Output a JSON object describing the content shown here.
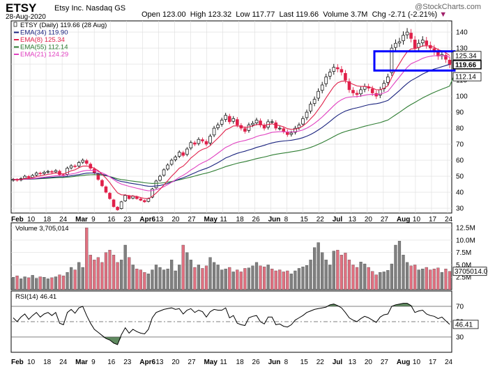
{
  "header": {
    "ticker": "ETSY",
    "company": "Etsy Inc. Nasdaq GS",
    "date": "28-Aug-2020",
    "open_label": "Open",
    "open": "123.00",
    "high_label": "High",
    "high": "123.32",
    "low_label": "Low",
    "low": "117.77",
    "last_label": "Last",
    "last": "119.66",
    "volume_label": "Volume",
    "volume": "3.7M",
    "chg_label": "Chg",
    "chg": "-2.71 (-2.21%)",
    "brand": "@StockCharts.com"
  },
  "colors": {
    "up": "#ffffff",
    "down": "#e0204a",
    "ema34": "#1a237e",
    "ema8": "#e0204a",
    "ema55": "#2e7d32",
    "ema21": "#e040c0",
    "vol_up": "#808080",
    "vol_down": "#e07080",
    "rsi_fill": "#5f8a5f",
    "highlight": "#0000ff",
    "grid": "#dddddd"
  },
  "chart_data": [
    {
      "type": "candlestick",
      "title": "ETSY (Daily) 119.66 (28 Aug)",
      "ylim": [
        27,
        147
      ],
      "yticks": [
        30,
        40,
        50,
        60,
        70,
        80,
        90,
        100,
        110,
        120,
        130,
        140
      ],
      "xtick_labels": [
        "Feb",
        "10",
        "18",
        "24",
        "Mar",
        "9",
        "16",
        "23",
        "Apr6",
        "13",
        "20",
        "27",
        "May",
        "11",
        "18",
        "26",
        "Jun",
        "8",
        "15",
        "22",
        "Jul",
        "13",
        "20",
        "27",
        "Aug",
        "10",
        "17",
        "24"
      ],
      "legend": [
        {
          "label": "EMA(34) 119.90",
          "color": "#1a237e"
        },
        {
          "label": "EMA(8) 125.34",
          "color": "#e0204a"
        },
        {
          "label": "EMA(55) 112.14",
          "color": "#2e7d32"
        },
        {
          "label": "EMA(21) 124.29",
          "color": "#e040c0"
        }
      ],
      "right_labels": [
        {
          "text": "125.34",
          "value": 125.34
        },
        {
          "text": "119.66",
          "value": 119.66
        },
        {
          "text": "112.14",
          "value": 112.14
        }
      ],
      "close": [
        48,
        47.5,
        48.5,
        50,
        49,
        50.5,
        52,
        51.5,
        52.5,
        53,
        52.5,
        53.5,
        51,
        50.5,
        55,
        56.5,
        56,
        58.5,
        60,
        58,
        55,
        52,
        48,
        44,
        40,
        36,
        31,
        29,
        34,
        38,
        36,
        37.5,
        36,
        35,
        34,
        36,
        42,
        47,
        50,
        54,
        57,
        60,
        62,
        65,
        63,
        67,
        71,
        70,
        73,
        72,
        70,
        75,
        80,
        82,
        85,
        88,
        84,
        86,
        82,
        80,
        78,
        82,
        83,
        85,
        82,
        80,
        84,
        84,
        80,
        80,
        78,
        76,
        77,
        80,
        82,
        86,
        90,
        95,
        98,
        103,
        107,
        112,
        115,
        118,
        117,
        115,
        110,
        104,
        102,
        101,
        104,
        106,
        105,
        102,
        100,
        104,
        108,
        112,
        130,
        133,
        134,
        138,
        140,
        136,
        130,
        133,
        135,
        132,
        130,
        128,
        125,
        126,
        123,
        119.66
      ],
      "ema8": [
        48,
        47.9,
        48,
        48.5,
        48.6,
        49,
        49.8,
        50.2,
        50.7,
        51.2,
        51.5,
        52,
        51.7,
        51.4,
        52.3,
        53.4,
        54,
        55.3,
        56.3,
        56.4,
        56,
        55,
        53.5,
        51.2,
        48.8,
        46,
        42.7,
        39.6,
        38.4,
        38.3,
        37.8,
        37.7,
        37.3,
        36.7,
        36.1,
        36,
        37.4,
        39.5,
        41.8,
        44.5,
        47.2,
        50,
        52.4,
        55,
        56.3,
        58.6,
        61.4,
        63.3,
        65.4,
        66.8,
        67.5,
        69.1,
        71.5,
        73.8,
        76.3,
        78.9,
        80,
        81.4,
        81.5,
        81.1,
        80.4,
        80.8,
        81.4,
        82.3,
        82.3,
        81.8,
        82.3,
        82.7,
        82.1,
        81.6,
        80.8,
        79.7,
        79.2,
        79.4,
        80,
        81.4,
        83.3,
        85.9,
        88.4,
        91.7,
        95.1,
        98.9,
        102.5,
        106,
        108.3,
        109.3,
        109.5,
        108.4,
        107.4,
        106.4,
        106.1,
        106.1,
        105.9,
        105.1,
        104,
        104,
        104.9,
        106.5,
        111.7,
        116.4,
        120.3,
        124.2,
        127.7,
        129.5,
        129.6,
        130.4,
        131.4,
        131.5,
        131.2,
        130.5,
        129,
        128.3,
        127.1,
        125.34
      ],
      "ema21": [
        48,
        48,
        48,
        48.2,
        48.3,
        48.5,
        48.8,
        49.1,
        49.4,
        49.7,
        50,
        50.3,
        50.4,
        50.4,
        50.9,
        51.4,
        51.8,
        52.5,
        53.2,
        53.6,
        53.7,
        53.6,
        53,
        52.1,
        51,
        49.6,
        47.9,
        46.2,
        45.1,
        44.4,
        43.7,
        43.1,
        42.5,
        41.9,
        41.3,
        40.9,
        41,
        41.6,
        42.4,
        43.5,
        44.8,
        46.2,
        47.7,
        49.3,
        50.6,
        52.1,
        53.9,
        55.4,
        57.1,
        58.4,
        59.5,
        60.9,
        62.6,
        64.4,
        66.2,
        68,
        69.1,
        70.4,
        71.2,
        71.8,
        72.3,
        73,
        73.8,
        74.8,
        75.5,
        75.9,
        76.7,
        77.4,
        77.6,
        77.8,
        77.8,
        77.6,
        77.6,
        77.8,
        78.2,
        78.9,
        80,
        81.4,
        83,
        84.9,
        87,
        89.3,
        91.7,
        94.1,
        96.2,
        97.8,
        98.9,
        99.4,
        99.6,
        99.7,
        100.1,
        100.6,
        101,
        101.1,
        101,
        101.3,
        102,
        103,
        106,
        109,
        112,
        115,
        118,
        120.2,
        121.3,
        122.4,
        123.6,
        124.4,
        124.9,
        125.2,
        125.2,
        125.3,
        125,
        124.29
      ],
      "ema34": [
        48,
        48,
        48,
        48.1,
        48.2,
        48.3,
        48.5,
        48.7,
        48.9,
        49.1,
        49.3,
        49.5,
        49.6,
        49.6,
        49.9,
        50.3,
        50.6,
        51,
        51.5,
        51.9,
        52,
        52,
        51.7,
        51.2,
        50.5,
        49.7,
        48.6,
        47.4,
        46.7,
        46.3,
        45.8,
        45.4,
        45,
        44.6,
        44.1,
        43.8,
        43.7,
        43.9,
        44.2,
        44.8,
        45.5,
        46.3,
        47.2,
        48.2,
        49,
        50,
        51.1,
        52.1,
        53.2,
        54.1,
        54.9,
        55.9,
        57.2,
        58.5,
        59.9,
        61.4,
        62.3,
        63.4,
        64.3,
        65,
        65.6,
        66.4,
        67.1,
        68,
        68.6,
        69.3,
        70.1,
        70.8,
        71.3,
        71.7,
        72,
        72.2,
        72.5,
        72.9,
        73.4,
        74.1,
        75,
        76.1,
        77.4,
        78.9,
        80.5,
        82.3,
        84.2,
        86.2,
        88,
        89.5,
        90.7,
        91.5,
        92.2,
        92.7,
        93.3,
        94,
        94.6,
        95,
        95.3,
        95.8,
        96.5,
        97.3,
        99.3,
        101.4,
        103.5,
        105.8,
        107.9,
        109.7,
        111,
        112.4,
        113.8,
        114.9,
        116,
        116.9,
        117.6,
        118.4,
        119.1,
        119.9
      ],
      "ema55": [
        48,
        48,
        48,
        48.1,
        48.1,
        48.2,
        48.3,
        48.5,
        48.6,
        48.8,
        48.9,
        49.1,
        49.2,
        49.2,
        49.4,
        49.6,
        49.9,
        50.2,
        50.5,
        50.8,
        50.9,
        51,
        50.9,
        50.7,
        50.3,
        49.8,
        49.1,
        48.4,
        47.9,
        47.6,
        47.2,
        46.9,
        46.6,
        46.3,
        45.9,
        45.7,
        45.5,
        45.6,
        45.7,
        45.9,
        46.3,
        46.7,
        47.2,
        47.8,
        48.3,
        48.9,
        49.5,
        50.1,
        50.8,
        51.4,
        51.9,
        52.6,
        53.4,
        54.2,
        55.1,
        56,
        56.7,
        57.4,
        58.1,
        58.6,
        59.1,
        59.7,
        60.3,
        61,
        61.5,
        62,
        62.6,
        63.2,
        63.7,
        64.1,
        64.5,
        64.8,
        65.2,
        65.6,
        66,
        66.6,
        67.2,
        68,
        68.9,
        69.9,
        71,
        72.2,
        73.5,
        74.8,
        76,
        77.1,
        77.9,
        78.6,
        79.2,
        79.8,
        80.5,
        81.2,
        81.8,
        82.4,
        82.9,
        83.5,
        84.3,
        85.1,
        86.7,
        88.3,
        89.9,
        91.6,
        93.3,
        94.8,
        96.1,
        97.5,
        98.9,
        100.1,
        101.3,
        102.4,
        103.4,
        104.4,
        105.3,
        106.3,
        112.14
      ]
    },
    {
      "type": "bar",
      "title": "Volume 3,705,014",
      "ylim": [
        0,
        13.5
      ],
      "yticks": [
        "2.5M",
        "5.0M",
        "7.5M",
        "10.0M",
        "12.5M"
      ],
      "right_label": "3705014.0",
      "values": [
        2.5,
        2.8,
        2.2,
        2.6,
        2.4,
        2.9,
        2.3,
        2.6,
        2.5,
        2.2,
        2.4,
        2.6,
        3,
        2.8,
        3.5,
        4.5,
        4,
        5.5,
        4.5,
        12.5,
        7,
        6,
        6.5,
        5.5,
        7.5,
        8,
        7,
        5.5,
        6,
        9,
        6.5,
        5,
        4.2,
        4,
        3.5,
        3.2,
        4,
        5,
        4.5,
        4,
        4.2,
        6,
        3.8,
        5,
        9,
        7.5,
        6,
        4.5,
        5,
        4.3,
        4.8,
        6.5,
        5.5,
        5,
        4,
        4.2,
        4.5,
        3.6,
        4,
        3.6,
        4.3,
        4.4,
        4.8,
        5.5,
        4.8,
        4.6,
        5,
        4.2,
        3.8,
        4,
        3.6,
        3.8,
        3.2,
        3.8,
        4.3,
        4.6,
        4.9,
        6,
        8.5,
        9.5,
        7.5,
        6,
        5,
        7.8,
        8,
        7,
        7.4,
        6,
        5,
        4.5,
        5.6,
        5.2,
        4.5,
        3.7,
        3,
        3.5,
        3.6,
        3.9,
        5.2,
        9,
        9.8,
        7,
        5.5,
        4.8,
        5,
        4,
        4.2,
        4.5,
        4,
        4.2,
        4.4,
        3.5,
        4.2,
        3.7
      ],
      "up": [
        true,
        false,
        true,
        true,
        false,
        true,
        true,
        false,
        true,
        true,
        false,
        true,
        false,
        false,
        true,
        true,
        false,
        true,
        true,
        false,
        false,
        false,
        false,
        false,
        false,
        false,
        false,
        false,
        true,
        true,
        false,
        true,
        false,
        false,
        false,
        true,
        true,
        true,
        true,
        true,
        true,
        true,
        true,
        true,
        false,
        true,
        true,
        false,
        true,
        false,
        false,
        true,
        true,
        true,
        true,
        true,
        false,
        true,
        false,
        false,
        false,
        true,
        true,
        true,
        false,
        false,
        true,
        false,
        false,
        false,
        false,
        false,
        true,
        true,
        true,
        true,
        true,
        true,
        true,
        true,
        true,
        true,
        true,
        true,
        false,
        false,
        false,
        false,
        false,
        false,
        true,
        true,
        false,
        false,
        false,
        true,
        true,
        true,
        true,
        true,
        true,
        true,
        true,
        false,
        false,
        true,
        true,
        false,
        false,
        false,
        false,
        true,
        false,
        false
      ],
      "categories": "same dates as price panel"
    },
    {
      "type": "line",
      "title": "RSI(14) 46.41",
      "ylim": [
        10,
        90
      ],
      "yticks": [
        30,
        50,
        70
      ],
      "right_label": "46.41",
      "values": [
        55,
        50,
        56,
        60,
        53,
        58,
        62,
        56,
        60,
        62,
        58,
        62,
        48,
        46,
        62,
        66,
        61,
        68,
        70,
        58,
        48,
        40,
        36,
        32,
        28,
        26,
        22,
        20,
        33,
        42,
        35,
        40,
        37,
        35,
        34,
        40,
        55,
        62,
        64,
        66,
        67,
        68,
        66,
        67,
        60,
        65,
        67,
        62,
        65,
        63,
        56,
        63,
        66,
        65,
        65,
        68,
        55,
        58,
        48,
        46,
        45,
        55,
        57,
        58,
        50,
        47,
        56,
        56,
        46,
        47,
        44,
        43,
        46,
        52,
        55,
        58,
        62,
        64,
        66,
        67,
        68,
        69,
        72,
        73,
        71,
        68,
        62,
        55,
        52,
        50,
        54,
        57,
        55,
        52,
        49,
        56,
        59,
        60,
        70,
        72,
        73,
        74,
        74,
        71,
        62,
        64,
        65,
        60,
        58,
        57,
        54,
        56,
        51,
        46.41
      ]
    }
  ]
}
